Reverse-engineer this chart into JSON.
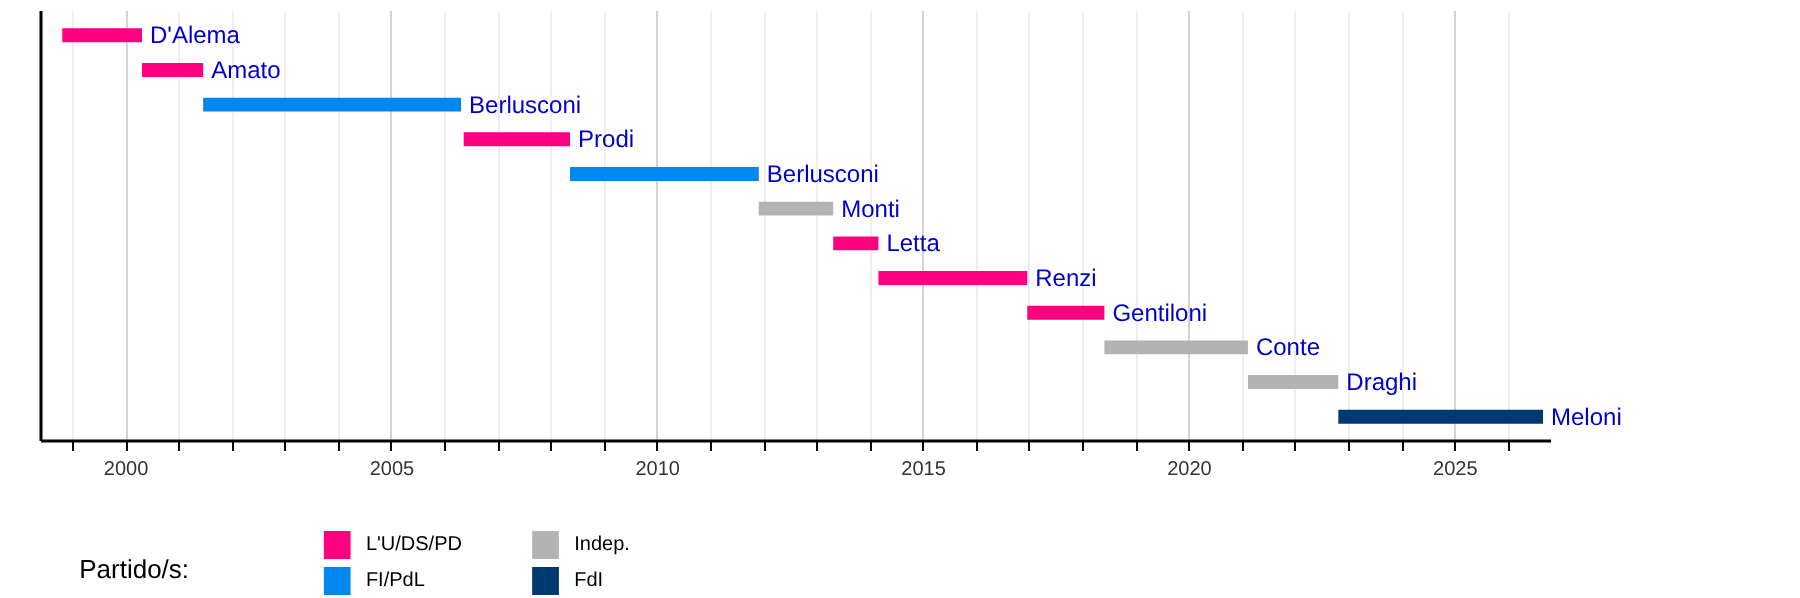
{
  "chart_data": {
    "type": "bar",
    "orientation": "horizontal",
    "categories": [
      "D'Alema",
      "Amato",
      "Berlusconi",
      "Prodi",
      "Berlusconi",
      "Monti",
      "Letta",
      "Renzi",
      "Gentiloni",
      "Conte",
      "Draghi",
      "Meloni"
    ],
    "series": [
      {
        "name": "L'U/DS/PD",
        "color": "#ff0080",
        "base": [
          1998.8,
          2000.3,
          null,
          2006.35,
          null,
          null,
          2013.3,
          2014.15,
          2016.95,
          null,
          null,
          null
        ],
        "values": [
          1.5,
          1.15,
          null,
          2.0,
          null,
          null,
          0.85,
          2.8,
          1.45,
          null,
          null,
          null
        ]
      },
      {
        "name": "FI/PdL",
        "color": "#0087f0",
        "base": [
          null,
          null,
          2001.45,
          null,
          2008.35,
          null,
          null,
          null,
          null,
          null,
          null,
          null
        ],
        "values": [
          null,
          null,
          4.85,
          null,
          3.55,
          null,
          null,
          null,
          null,
          null,
          null,
          null
        ]
      },
      {
        "name": "Indep.",
        "color": "#b3b3b3",
        "base": [
          null,
          null,
          null,
          null,
          null,
          2011.9,
          null,
          null,
          null,
          2018.4,
          2021.1,
          null
        ],
        "values": [
          null,
          null,
          null,
          null,
          null,
          1.4,
          null,
          null,
          null,
          2.7,
          1.7,
          null
        ]
      },
      {
        "name": "FdI",
        "color": "#003870",
        "base": [
          null,
          null,
          null,
          null,
          null,
          null,
          null,
          null,
          null,
          null,
          null,
          2022.8
        ],
        "values": [
          null,
          null,
          null,
          null,
          null,
          null,
          null,
          null,
          null,
          null,
          null,
          3.85
        ]
      }
    ],
    "legend_title": "Partido/s:",
    "legend": "bottom",
    "xlim": [
      1998.4,
      2026.8
    ],
    "xticks": [
      {
        "value": 1999,
        "label": null
      },
      2000,
      {
        "value": 2001,
        "label": null
      },
      {
        "value": 2002,
        "label": null
      },
      {
        "value": 2003,
        "label": null
      },
      {
        "value": 2004,
        "label": null
      },
      2005,
      {
        "value": 2006,
        "label": null
      },
      {
        "value": 2007,
        "label": null
      },
      {
        "value": 2008,
        "label": null
      },
      {
        "value": 2009,
        "label": null
      },
      2010,
      {
        "value": 2011,
        "label": null
      },
      {
        "value": 2012,
        "label": null
      },
      {
        "value": 2013,
        "label": null
      },
      {
        "value": 2014,
        "label": null
      },
      2015,
      {
        "value": 2016,
        "label": null
      },
      {
        "value": 2017,
        "label": null
      },
      {
        "value": 2018,
        "label": null
      },
      {
        "value": 2019,
        "label": null
      },
      2020,
      {
        "value": 2021,
        "label": null
      },
      {
        "value": 2022,
        "label": null
      },
      {
        "value": 2023,
        "label": null
      },
      {
        "value": 2024,
        "label": null
      },
      2025,
      {
        "value": 2026,
        "label": null
      }
    ],
    "grid": "x",
    "tick_labels": "x"
  }
}
